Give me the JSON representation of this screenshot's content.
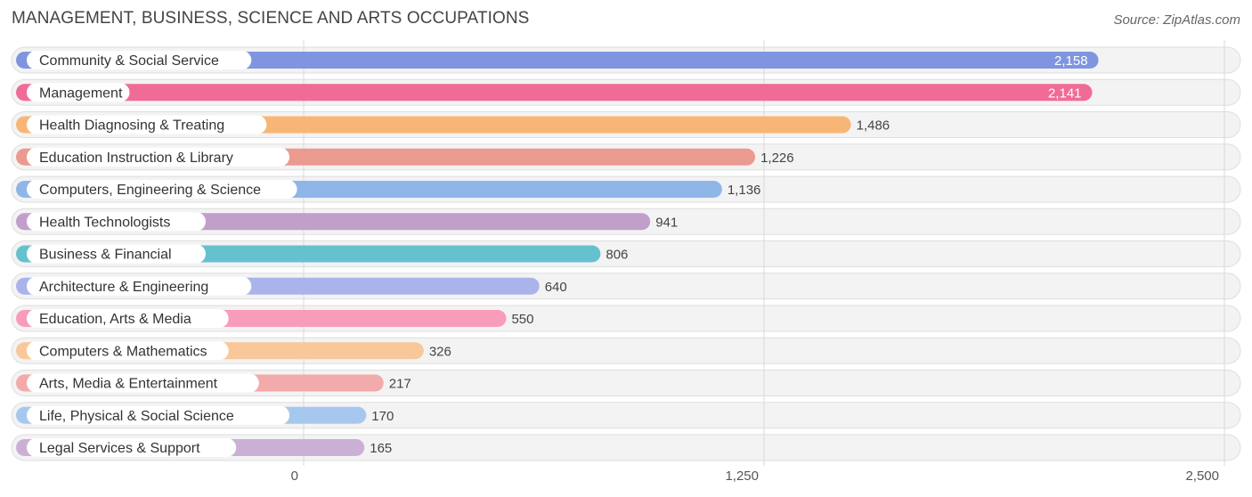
{
  "title": "MANAGEMENT, BUSINESS, SCIENCE AND ARTS OCCUPATIONS",
  "source": "Source: ZipAtlas.com",
  "chart_data": {
    "type": "bar",
    "orientation": "horizontal",
    "categories": [
      "Community & Social Service",
      "Management",
      "Health Diagnosing & Treating",
      "Education Instruction & Library",
      "Computers, Engineering & Science",
      "Health Technologists",
      "Business & Financial",
      "Architecture & Engineering",
      "Education, Arts & Media",
      "Computers & Mathematics",
      "Arts, Media & Entertainment",
      "Life, Physical & Social Science",
      "Legal Services & Support"
    ],
    "values": [
      2158,
      2141,
      1486,
      1226,
      1136,
      941,
      806,
      640,
      550,
      326,
      217,
      170,
      165
    ],
    "value_labels": [
      "2,158",
      "2,141",
      "1,486",
      "1,226",
      "1,136",
      "941",
      "806",
      "640",
      "550",
      "326",
      "217",
      "170",
      "165"
    ],
    "colors": [
      "#8095e0",
      "#f06b95",
      "#f8b676",
      "#eb9a8f",
      "#8eb6e8",
      "#c19fcb",
      "#66c1cf",
      "#aab4ea",
      "#f79dba",
      "#f9c89a",
      "#f2aaaa",
      "#a7c8ee",
      "#cbb0d6"
    ],
    "xlim": [
      0,
      2500
    ],
    "xticks": [
      0,
      1250,
      2500
    ],
    "xtick_labels": [
      "0",
      "1,250",
      "2,500"
    ],
    "grid": true
  }
}
